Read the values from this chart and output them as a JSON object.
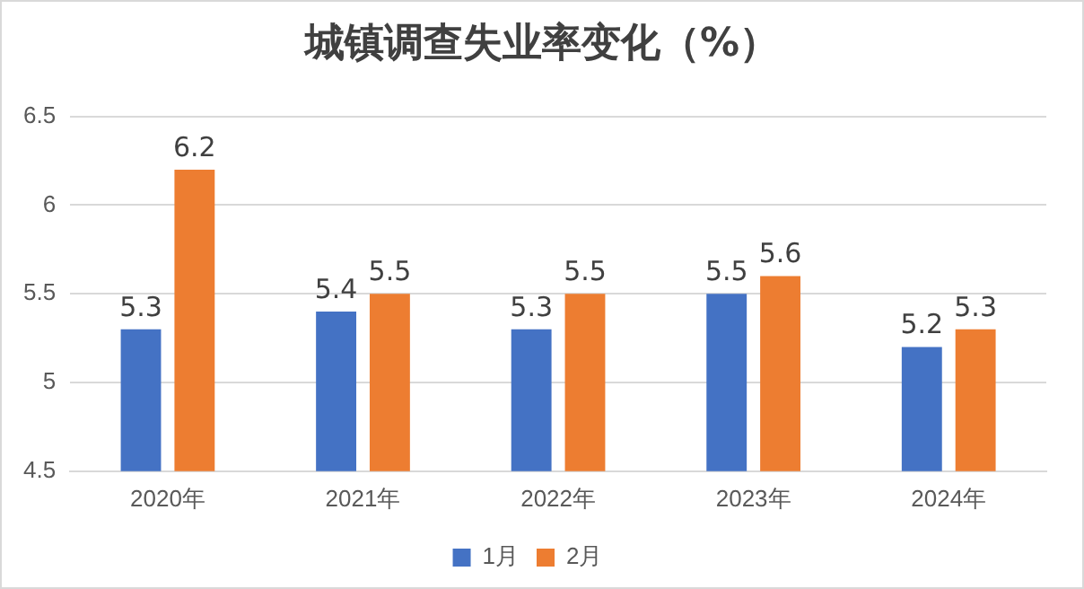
{
  "chart_data": {
    "type": "bar",
    "title": "城镇调查失业率变化（%）",
    "categories": [
      "2020年",
      "2021年",
      "2022年",
      "2023年",
      "2024年"
    ],
    "series": [
      {
        "name": "1月",
        "color": "#4472c4",
        "values": [
          5.3,
          5.4,
          5.3,
          5.5,
          5.2
        ]
      },
      {
        "name": "2月",
        "color": "#ed7d31",
        "values": [
          6.2,
          5.5,
          5.5,
          5.6,
          5.3
        ]
      }
    ],
    "ylim": [
      4.5,
      6.5
    ],
    "yticks": [
      4.5,
      5,
      5.5,
      6,
      6.5
    ],
    "grid": "y",
    "legend": "bottom",
    "data_labels": true
  }
}
